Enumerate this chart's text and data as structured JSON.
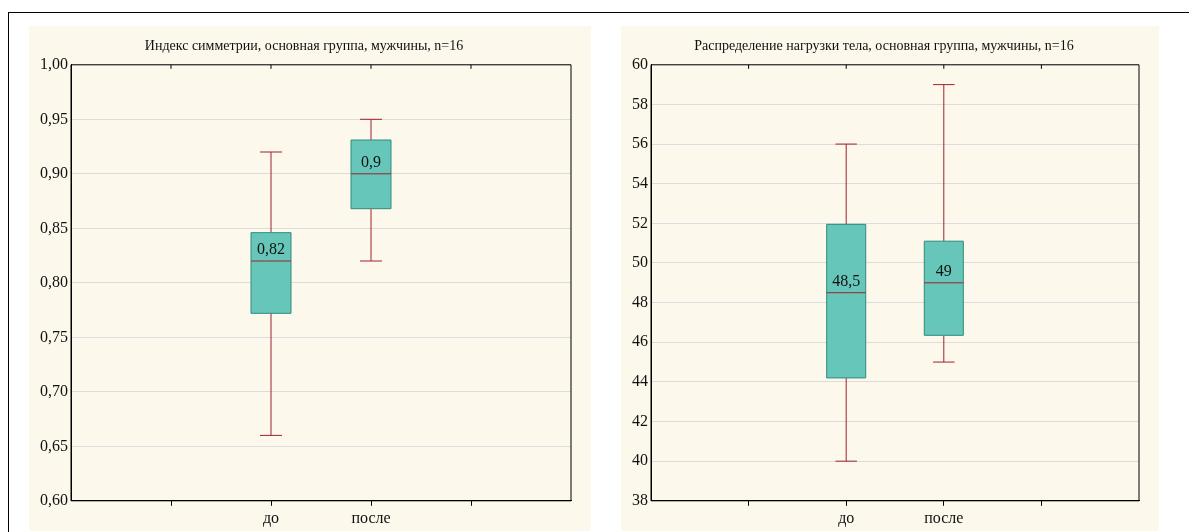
{
  "chart_data": [
    {
      "type": "box",
      "title": "Индекс симметрии, основная группа, мужчины, n=16",
      "categories": [
        "до",
        "после"
      ],
      "color": "#66c6b9",
      "boxes": [
        {
          "low": 0.66,
          "q1": 0.772,
          "median": 0.82,
          "q3": 0.846,
          "high": 0.92
        },
        {
          "low": 0.82,
          "q1": 0.868,
          "median": 0.9,
          "q3": 0.931,
          "high": 0.95
        }
      ],
      "ylim": [
        0.6,
        1.0
      ],
      "yticks": [
        {
          "value": 0.6,
          "label": "0,60"
        },
        {
          "value": 0.65,
          "label": "0,65"
        },
        {
          "value": 0.7,
          "label": "0,70"
        },
        {
          "value": 0.75,
          "label": "0,75"
        },
        {
          "value": 0.8,
          "label": "0,80"
        },
        {
          "value": 0.85,
          "label": "0,85"
        },
        {
          "value": 0.9,
          "label": "0,90"
        },
        {
          "value": 0.95,
          "label": "0,95"
        },
        {
          "value": 1.0,
          "label": "1,00"
        }
      ],
      "grid": "y",
      "value_labels": [
        "0,82",
        "0,9"
      ]
    },
    {
      "type": "box",
      "title": "Распределение нагрузки тела, основная группа, мужчины, n=16",
      "categories": [
        "до",
        "после"
      ],
      "color": "#66c6b9",
      "boxes": [
        {
          "low": 40,
          "q1": 44.2,
          "median": 48.5,
          "q3": 51.95,
          "high": 56
        },
        {
          "low": 45,
          "q1": 46.35,
          "median": 49,
          "q3": 51.1,
          "high": 59
        }
      ],
      "ylim": [
        38,
        60
      ],
      "yticks": [
        38,
        40,
        42,
        44,
        46,
        48,
        50,
        52,
        54,
        56,
        58,
        60
      ],
      "grid": "y",
      "value_labels": [
        "48,5",
        "49"
      ]
    }
  ]
}
